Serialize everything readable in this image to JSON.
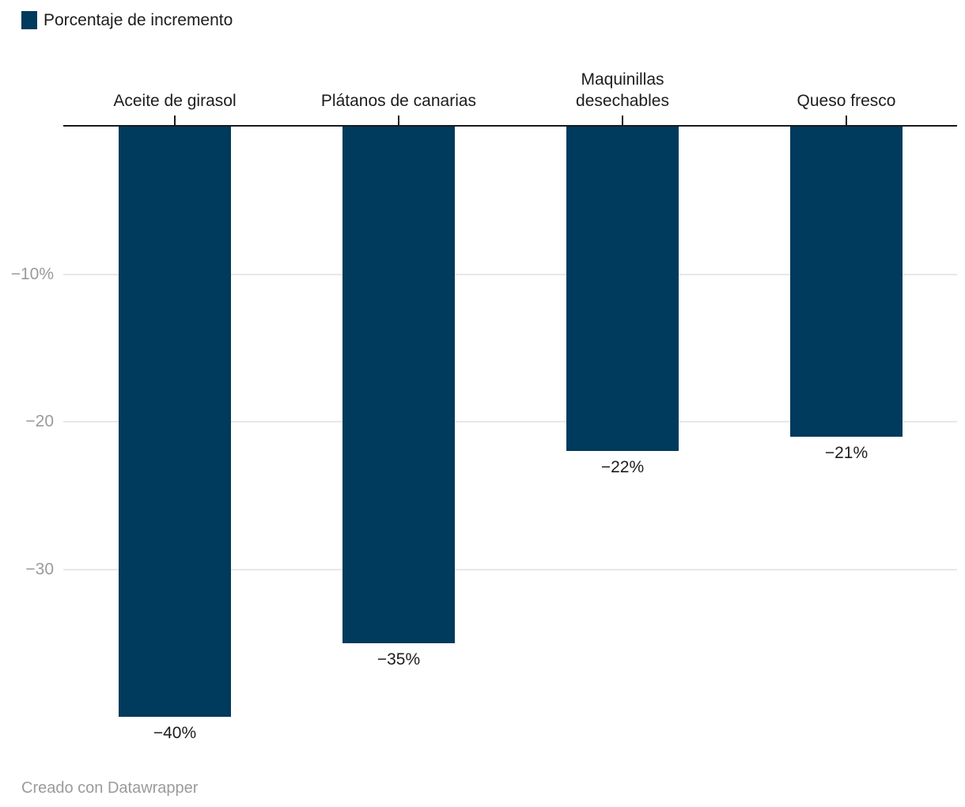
{
  "legend": {
    "label": "Porcentaje de incremento",
    "swatch_color": "#003a5c"
  },
  "footer": {
    "text": "Creado con Datawrapper"
  },
  "colors": {
    "bar": "#003a5c",
    "axis": "#1a1a1a",
    "grid": "#e8e8e8",
    "tick_label": "#9a9a9a",
    "value_label": "#1d1d1d",
    "category_label": "#1d1d1d",
    "footer_text": "#9b9b9b"
  },
  "chart_data": {
    "type": "bar",
    "title": "",
    "series_name": "Porcentaje de incremento",
    "categories": [
      "Aceite de girasol",
      "Plátanos de canarias",
      "Maquinillas desechables",
      "Queso fresco"
    ],
    "values": [
      -40,
      -35,
      -22,
      -21
    ],
    "value_labels": [
      "−40%",
      "−35%",
      "−22%",
      "−21%"
    ],
    "y_ticks": [
      {
        "value": -10,
        "label": "−10%"
      },
      {
        "value": -20,
        "label": "−20"
      },
      {
        "value": -30,
        "label": "−30"
      }
    ],
    "ylim": [
      -42,
      0
    ],
    "grid": true,
    "bar_orientation": "vertical-down",
    "legend_position": "top-left",
    "attribution": "Creado con Datawrapper"
  }
}
